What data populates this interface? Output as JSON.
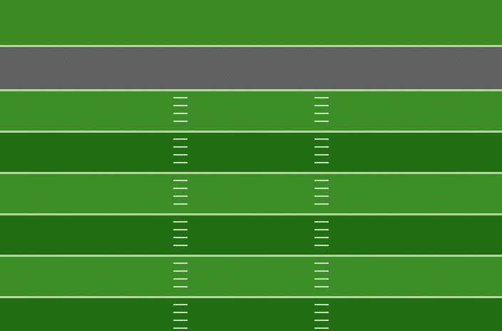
{
  "scene": {
    "name": "football-field-top-down",
    "colors": {
      "grass_light": "#3b8d26",
      "grass_dark": "#1f6e12",
      "top_grass": "#3a8b24",
      "track": "#5f5f62",
      "line": "#b9d9a4",
      "hash": "#d7e9cc"
    },
    "stripes": [
      {
        "shade": "light"
      },
      {
        "shade": "dark"
      },
      {
        "shade": "light"
      },
      {
        "shade": "dark"
      },
      {
        "shade": "light"
      },
      {
        "shade": "dark"
      }
    ],
    "hash_columns": 2,
    "hashes_per_stripe": 4
  }
}
